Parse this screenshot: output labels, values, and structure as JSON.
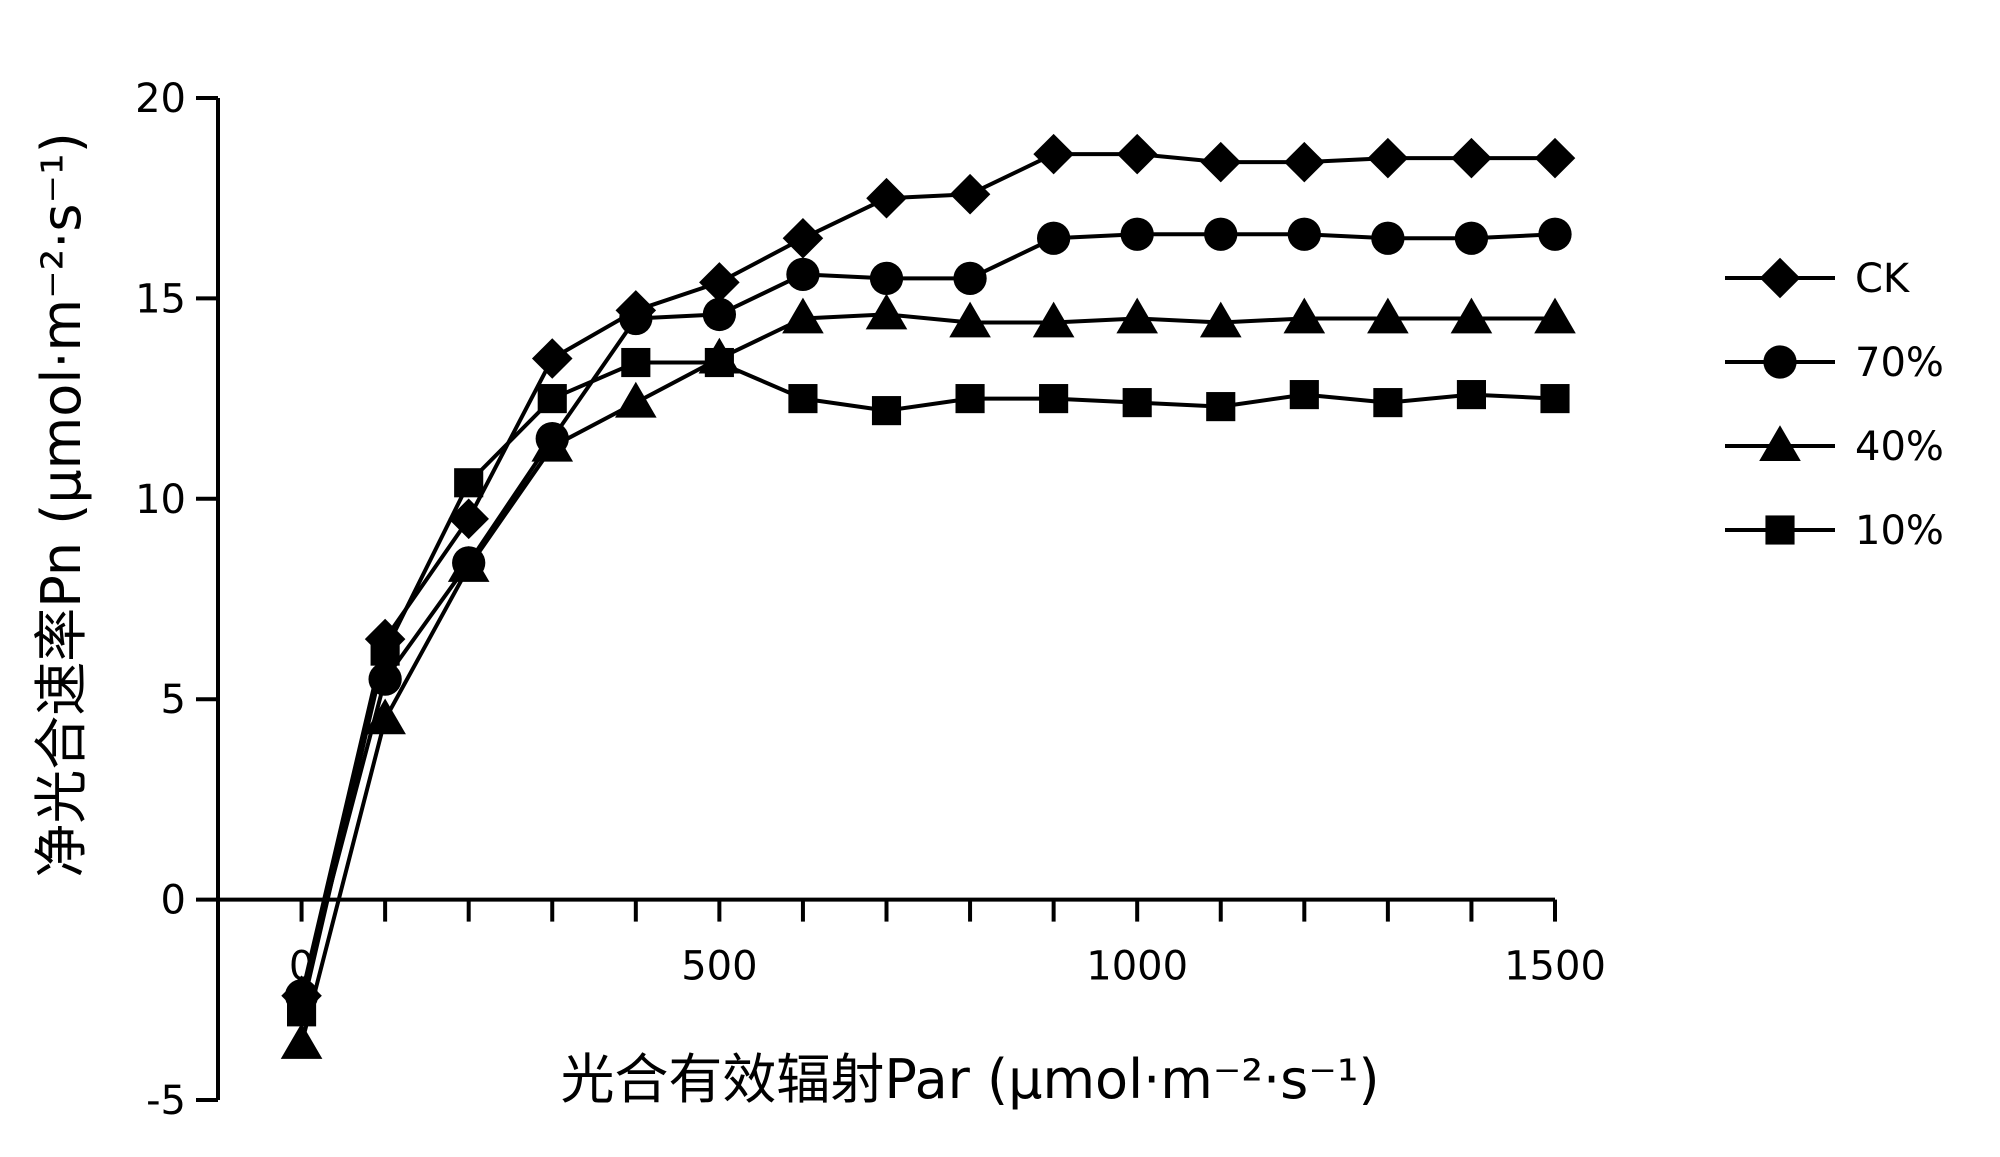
{
  "chart_data": {
    "type": "line",
    "title": "",
    "xlabel": "光合有效辐射Par (μmol·m⁻²·s⁻¹)",
    "ylabel": "净光合速率Pn (μmol·m⁻²·s⁻¹)",
    "xlim": [
      -100,
      1500
    ],
    "ylim": [
      -5,
      20
    ],
    "xticks": [
      0,
      500,
      1000,
      1500
    ],
    "yticks": [
      -5,
      0,
      5,
      10,
      15,
      20
    ],
    "xtick_labels": [
      "0",
      "500",
      "1000",
      "1500"
    ],
    "ytick_labels": [
      "-5",
      "0",
      "5",
      "10",
      "15",
      "20"
    ],
    "grid": false,
    "legend_position": "right",
    "x": [
      0,
      100,
      200,
      300,
      400,
      500,
      600,
      700,
      800,
      900,
      1000,
      1100,
      1200,
      1300,
      1400,
      1500
    ],
    "series": [
      {
        "name": "CK",
        "marker": "diamond",
        "values": [
          -2.4,
          6.5,
          9.5,
          13.5,
          14.7,
          15.4,
          16.5,
          17.5,
          17.6,
          18.6,
          18.6,
          18.4,
          18.4,
          18.5,
          18.5,
          18.5
        ]
      },
      {
        "name": "70%",
        "marker": "circle",
        "values": [
          -2.4,
          5.5,
          8.4,
          11.5,
          14.5,
          14.6,
          15.6,
          15.5,
          15.5,
          16.5,
          16.6,
          16.6,
          16.6,
          16.5,
          16.5,
          16.6
        ]
      },
      {
        "name": "40%",
        "marker": "triangle",
        "values": [
          -3.6,
          4.5,
          8.3,
          11.3,
          12.4,
          13.5,
          14.5,
          14.6,
          14.4,
          14.4,
          14.5,
          14.4,
          14.5,
          14.5,
          14.5,
          14.5
        ]
      },
      {
        "name": "10%",
        "marker": "square",
        "values": [
          -2.8,
          6.2,
          10.4,
          12.5,
          13.4,
          13.4,
          12.5,
          12.2,
          12.5,
          12.5,
          12.4,
          12.3,
          12.6,
          12.4,
          12.6,
          12.5
        ]
      }
    ],
    "colors": {
      "line": "#000000",
      "marker": "#000000",
      "background": "#ffffff"
    }
  }
}
